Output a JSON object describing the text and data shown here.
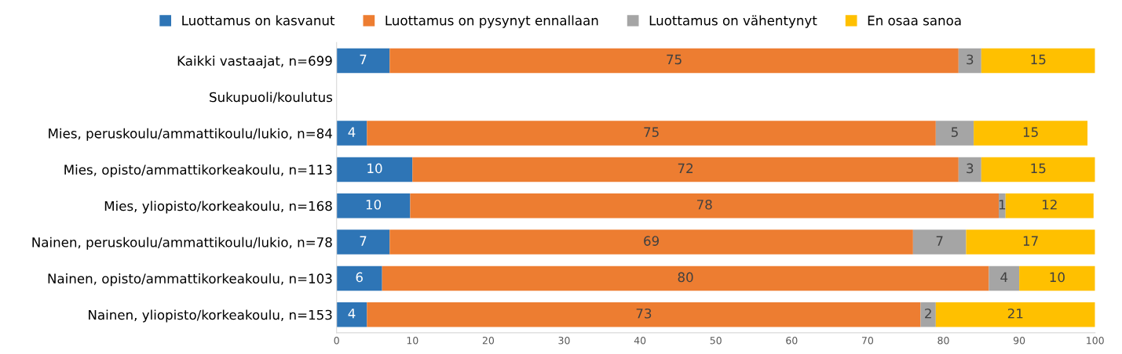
{
  "chart_data": {
    "type": "bar",
    "orientation": "horizontal",
    "stacked": true,
    "categories": [
      "Kaikki vastaajat, n=699",
      "Sukupuoli/koulutus",
      "Mies, peruskoulu/ammattikoulu/lukio, n=84",
      "Mies, opisto/ammattikorkeakoulu, n=113",
      "Mies, yliopisto/korkeakoulu, n=168",
      "Nainen, peruskoulu/ammattikoulu/lukio, n=78",
      "Nainen, opisto/ammattikorkeakoulu, n=103",
      "Nainen, yliopisto/korkeakoulu, n=153"
    ],
    "series": [
      {
        "name": "Luottamus on kasvanut",
        "color": "#2e75b6",
        "values": [
          7,
          null,
          4,
          10,
          9.7,
          7,
          6,
          4
        ],
        "value_labels": [
          "7",
          null,
          "4",
          "10",
          "10",
          "7",
          "6",
          "4"
        ]
      },
      {
        "name": "Luottamus on pysynyt ennallaan",
        "color": "#ed7d31",
        "values": [
          75,
          null,
          75,
          72,
          77.6,
          69,
          80,
          73
        ],
        "value_labels": [
          "75",
          null,
          "75",
          "72",
          "78",
          "69",
          "80",
          "73"
        ]
      },
      {
        "name": "Luottamus on vähentynyt",
        "color": "#a5a5a5",
        "values": [
          3,
          null,
          5,
          3,
          0.9,
          7,
          4,
          2
        ],
        "value_labels": [
          "3",
          null,
          "5",
          "3",
          "1",
          "7",
          "4",
          "2"
        ]
      },
      {
        "name": "En osaa sanoa",
        "color": "#ffc000",
        "values": [
          15,
          null,
          15,
          15,
          11.6,
          17,
          10,
          21
        ],
        "value_labels": [
          "15",
          null,
          "15",
          "15",
          "12",
          "17",
          "10",
          "21"
        ]
      }
    ],
    "xlim": [
      0,
      100
    ],
    "xticks": [
      0,
      10,
      20,
      30,
      40,
      50,
      60,
      70,
      80,
      90,
      100
    ],
    "grid": false,
    "legend": "top"
  }
}
